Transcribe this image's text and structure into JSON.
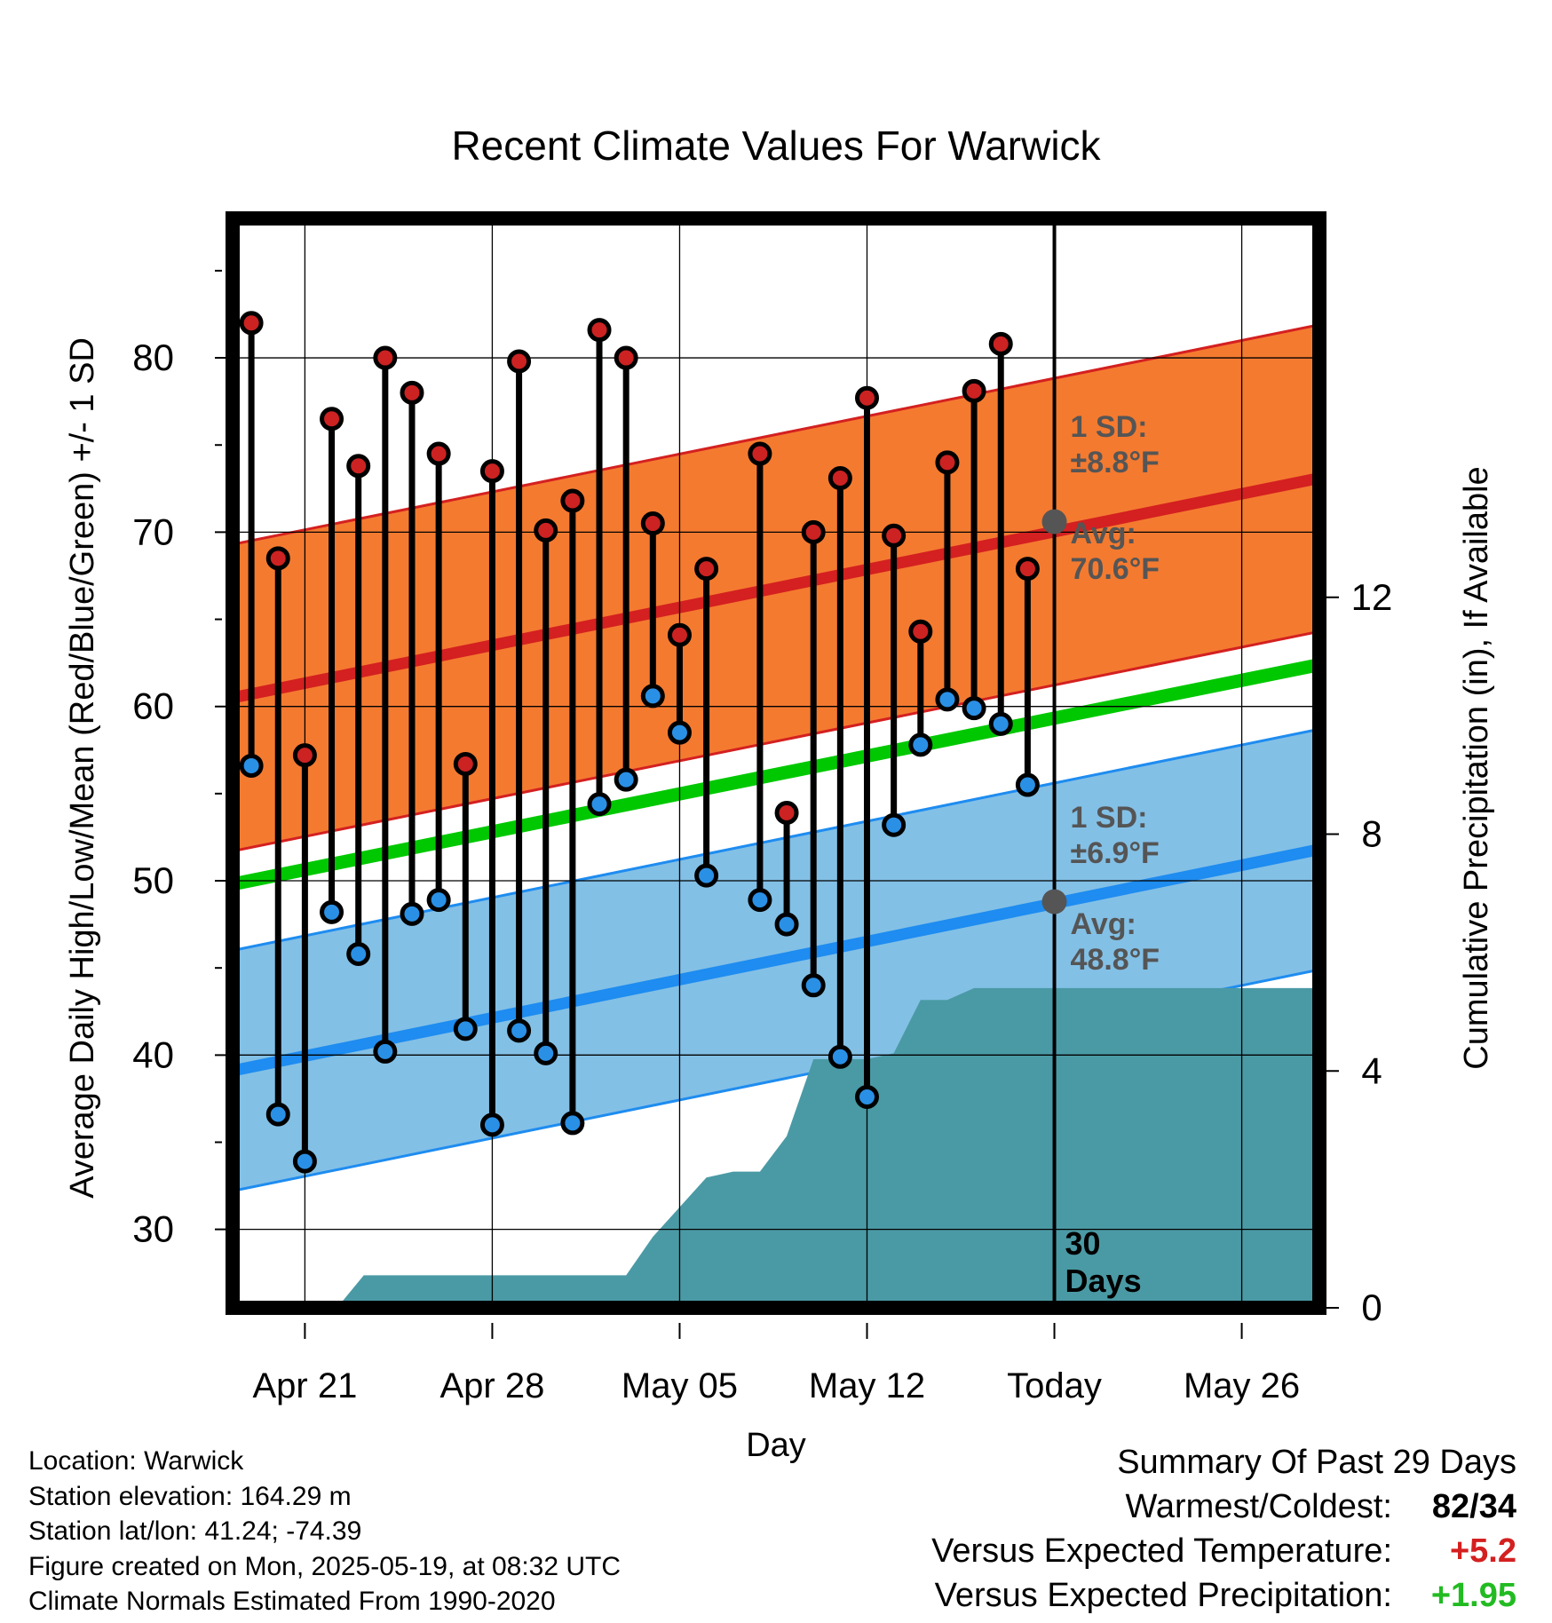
{
  "chart_data": {
    "type": "line",
    "title": "Recent Climate Values For Warwick",
    "xlabel": "Day",
    "ylabel": "Average Daily High/Low/Mean (Red/Blue/Green) +/- 1 SD",
    "y2label": "Cumulative Precipitation (in), If Available",
    "ylim": [
      25.5,
      88
    ],
    "y2lim": [
      0,
      18.4
    ],
    "y_ticks": [
      30,
      40,
      50,
      60,
      70,
      80
    ],
    "y2_ticks": [
      0,
      4,
      8,
      12
    ],
    "x_tick_labels": [
      "Apr 21",
      "Apr 28",
      "May 05",
      "May 12",
      "Today",
      "May 26"
    ],
    "x_tick_days": [
      0,
      7,
      14,
      21,
      28,
      35
    ],
    "xlim": [
      -2.7,
      37.9
    ],
    "grid": true,
    "daily_x": [
      -2,
      -1,
      0,
      1,
      2,
      3,
      4,
      5,
      6,
      7,
      8,
      9,
      10,
      11,
      12,
      13,
      14,
      15,
      16,
      17,
      18,
      19,
      20,
      21,
      22,
      23,
      24,
      25,
      26,
      27
    ],
    "daily_high": [
      82.0,
      68.5,
      57.2,
      76.5,
      73.8,
      80.0,
      78.0,
      74.5,
      56.7,
      73.5,
      79.8,
      70.1,
      71.8,
      81.6,
      80.0,
      70.5,
      64.1,
      67.9,
      null,
      74.5,
      53.9,
      70.0,
      73.1,
      77.7,
      69.8,
      64.3,
      74.0,
      78.1,
      80.8,
      67.9
    ],
    "daily_low": [
      56.6,
      36.6,
      33.9,
      48.2,
      45.8,
      40.2,
      48.1,
      48.9,
      41.5,
      36.0,
      41.4,
      40.1,
      36.1,
      54.4,
      55.8,
      60.6,
      58.5,
      50.3,
      null,
      48.9,
      47.5,
      44.0,
      39.9,
      37.6,
      53.2,
      57.8,
      60.4,
      59.9,
      59.0,
      55.5
    ],
    "normal_high": {
      "start": 60.5,
      "end": 73.1,
      "sd": 8.8,
      "label_sd": "1 SD:",
      "label_sd_value": "±8.8°F",
      "label_avg": "Avg:",
      "label_avg_value": "70.6°F",
      "today_value": 70.6
    },
    "normal_low": {
      "start": 39.1,
      "end": 51.8,
      "sd": 6.9,
      "label_sd": "1 SD:",
      "label_sd_value": "±6.9°F",
      "label_avg": "Avg:",
      "label_avg_value": "48.8°F",
      "today_value": 48.8
    },
    "normal_mean": {
      "start": 49.8,
      "end": 62.4
    },
    "precip_x": [
      -2.7,
      1.2,
      2.2,
      8.0,
      10.7,
      12.0,
      13.0,
      14.0,
      15.0,
      16.0,
      17.0,
      18.0,
      19.0,
      20.0,
      21.0,
      22.0,
      23.0,
      24.0,
      25.0,
      26.0,
      27.0,
      37.9
    ],
    "precip_cum": [
      0,
      0,
      0.55,
      0.55,
      0.55,
      0.55,
      1.2,
      1.7,
      2.2,
      2.3,
      2.3,
      2.9,
      4.2,
      4.2,
      4.2,
      4.3,
      5.2,
      5.2,
      5.4,
      5.4,
      5.4,
      5.4
    ],
    "today_marker_label": "30 Days",
    "colors": {
      "high_band": "#f47a30",
      "high_band_edge": "#d42020",
      "high_line": "#d42020",
      "low_band": "#83c0e6",
      "low_band_edge": "#1e8cf0",
      "low_line": "#1e8cf0",
      "mean_line": "#00c800",
      "precip_fill": "#4a9aa5",
      "high_dot": "#cc2222",
      "low_dot": "#2a90e6",
      "annotation_text": "#555555",
      "today_dot": "#555555"
    }
  },
  "footer": {
    "location": "Location: Warwick",
    "elevation": "Station elevation: 164.29 m",
    "latlon": "Station lat/lon: 41.24; -74.39",
    "created": "Figure created on Mon, 2025-05-19, at 08:32 UTC",
    "normals": "Climate Normals Estimated From 1990-2020"
  },
  "summary": {
    "title": "Summary Of Past 29 Days",
    "warmest_label": "Warmest/Coldest:",
    "warmest_value": "82/34",
    "temp_label": "Versus Expected Temperature:",
    "temp_value": "+5.2",
    "temp_color": "#d42020",
    "precip_label": "Versus Expected Precipitation:",
    "precip_value": "+1.95",
    "precip_color": "#22bb22"
  }
}
